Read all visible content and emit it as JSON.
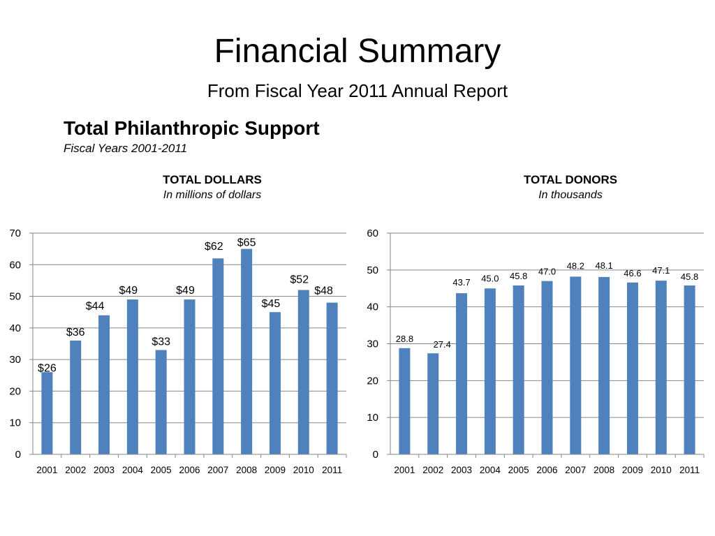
{
  "header": {
    "title": "Financial Summary",
    "subtitle": "From Fiscal Year 2011 Annual Report"
  },
  "section": {
    "title": "Total Philanthropic Support",
    "subtitle": "Fiscal Years 2001-2011"
  },
  "colors": {
    "bar": "#4f81bd",
    "grid": "#868686",
    "axis": "#868686"
  },
  "chart_data": [
    {
      "type": "bar",
      "title": "TOTAL DOLLARS",
      "subtitle": "In millions of dollars",
      "categories": [
        "2001",
        "2002",
        "2003",
        "2004",
        "2005",
        "2006",
        "2007",
        "2008",
        "2009",
        "2010",
        "2011"
      ],
      "values": [
        26,
        36,
        44,
        49,
        33,
        49,
        62,
        65,
        45,
        52,
        48
      ],
      "data_labels": [
        "$26",
        "$36",
        "$44",
        "$49",
        "$33",
        "$49",
        "$62",
        "$65",
        "$45",
        "$52",
        "$48"
      ],
      "ylim": [
        0,
        70
      ],
      "yticks": [
        "0",
        "10",
        "20",
        "30",
        "40",
        "50",
        "60",
        "70"
      ],
      "grid": true,
      "legend": "none"
    },
    {
      "type": "bar",
      "title": "TOTAL DONORS",
      "subtitle": "In thousands",
      "categories": [
        "2001",
        "2002",
        "2003",
        "2004",
        "2005",
        "2006",
        "2007",
        "2008",
        "2009",
        "2010",
        "2011"
      ],
      "values": [
        28.8,
        27.4,
        43.7,
        45.0,
        45.8,
        47.0,
        48.2,
        48.1,
        46.6,
        47.1,
        45.8
      ],
      "data_labels": [
        "28.8",
        "27.4",
        "43.7",
        "45.0",
        "45.8",
        "47.0",
        "48.2",
        "48.1",
        "46.6",
        "47.1",
        "45.8"
      ],
      "ylim": [
        0,
        60
      ],
      "yticks": [
        "0",
        "10",
        "20",
        "30",
        "40",
        "50",
        "60"
      ],
      "grid": true,
      "legend": "none"
    }
  ]
}
